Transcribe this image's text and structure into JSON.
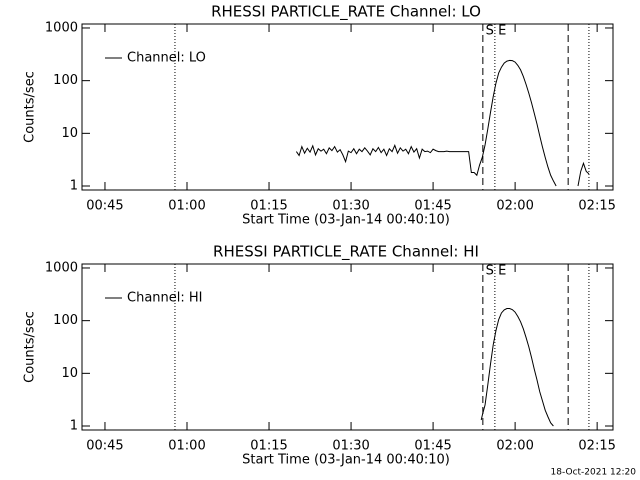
{
  "chart_data": [
    {
      "type": "line",
      "title": "RHESSI PARTICLE_RATE Channel: LO",
      "xlabel": "Start Time (03-Jan-14 00:40:10)",
      "ylabel": "Counts/sec",
      "log_y": true,
      "legend": "top-left",
      "xlim": [
        40.8,
        137.9
      ],
      "ylim": [
        0.84,
        1190
      ],
      "xticks": [
        {
          "value": 45,
          "label": "00:45"
        },
        {
          "value": 60,
          "label": "01:00"
        },
        {
          "value": 75,
          "label": "01:15"
        },
        {
          "value": 90,
          "label": "01:30"
        },
        {
          "value": 105,
          "label": "01:45"
        },
        {
          "value": 120,
          "label": "02:00"
        },
        {
          "value": 135,
          "label": "02:15"
        }
      ],
      "yticks": [
        1,
        10,
        100,
        1000
      ],
      "vlines": [
        {
          "x": 57.8,
          "style": "dotted"
        },
        {
          "x": 114.1,
          "style": "dashed"
        },
        {
          "x": 116.3,
          "style": "dotted"
        },
        {
          "x": 129.7,
          "style": "dashed"
        },
        {
          "x": 133.5,
          "style": "dotted"
        }
      ],
      "annotations": [
        {
          "text": "S",
          "x": 114.6
        },
        {
          "text": "E",
          "x": 116.9
        }
      ],
      "series": [
        {
          "name": "Channel: LO",
          "color": "#000000",
          "x": [
            80,
            80.5,
            81,
            81.5,
            82,
            82.5,
            83,
            83.5,
            84,
            84.5,
            85,
            85.5,
            86,
            86.5,
            87,
            87.5,
            88,
            88.5,
            89,
            89.5,
            90,
            90.5,
            91,
            91.5,
            92,
            92.5,
            93,
            93.5,
            94,
            94.5,
            95,
            95.5,
            96,
            96.5,
            97,
            97.5,
            98,
            98.5,
            99,
            99.5,
            100,
            100.5,
            101,
            101.5,
            102,
            102.5,
            103,
            103.5,
            104,
            104.5,
            105,
            105.5,
            106,
            106.5,
            107,
            107.5,
            108,
            108.5,
            109,
            109.5,
            110,
            110.5,
            111,
            111.5,
            112,
            112.5,
            113,
            113.5,
            114,
            114.5,
            115,
            115.5,
            116,
            116.5,
            117,
            117.5,
            118,
            118.5,
            119,
            119.5,
            120,
            120.5,
            121,
            121.5,
            122,
            122.5,
            123,
            123.5,
            124,
            124.5,
            125,
            125.5,
            126,
            126.5,
            127,
            127.5,
            129,
            131.5,
            132,
            132.5,
            133,
            133.5
          ],
          "values": [
            4.5,
            3.8,
            5.6,
            4.2,
            5.2,
            4.4,
            5.8,
            3.9,
            5.1,
            4.6,
            5.0,
            4.1,
            5.3,
            4.7,
            5.6,
            4.4,
            4.9,
            3.9,
            2.9,
            4.6,
            4.3,
            5.1,
            4.1,
            5.0,
            4.5,
            5.3,
            4.6,
            3.9,
            5.1,
            4.5,
            5.4,
            4.3,
            5.0,
            3.8,
            5.1,
            4.5,
            5.9,
            4.2,
            5.3,
            4.6,
            5.0,
            4.1,
            5.6,
            4.4,
            5.1,
            3.4,
            5.0,
            4.5,
            4.6,
            4.3,
            5.0,
            4.7,
            4.5,
            4.5,
            4.5,
            4.6,
            4.5,
            4.5,
            4.5,
            4.5,
            4.5,
            4.5,
            4.5,
            4.5,
            1.8,
            1.8,
            1.6,
            2.5,
            3.5,
            6,
            12,
            25,
            50,
            90,
            140,
            180,
            215,
            235,
            242,
            240,
            225,
            195,
            160,
            120,
            85,
            58,
            38,
            24,
            15,
            9,
            5.5,
            3.5,
            2.3,
            1.6,
            1.25,
            1.0,
            null,
            1.0,
            1.9,
            2.7,
            1.9,
            1.7
          ]
        }
      ]
    },
    {
      "type": "line",
      "title": "RHESSI PARTICLE_RATE Channel: HI",
      "xlabel": "Start Time (03-Jan-14 00:40:10)",
      "ylabel": "Counts/sec",
      "log_y": true,
      "legend": "top-left",
      "xlim": [
        40.8,
        137.9
      ],
      "ylim": [
        0.84,
        1190
      ],
      "xticks": [
        {
          "value": 45,
          "label": "00:45"
        },
        {
          "value": 60,
          "label": "01:00"
        },
        {
          "value": 75,
          "label": "01:15"
        },
        {
          "value": 90,
          "label": "01:30"
        },
        {
          "value": 105,
          "label": "01:45"
        },
        {
          "value": 120,
          "label": "02:00"
        },
        {
          "value": 135,
          "label": "02:15"
        }
      ],
      "yticks": [
        1,
        10,
        100,
        1000
      ],
      "vlines": [
        {
          "x": 57.8,
          "style": "dotted"
        },
        {
          "x": 114.1,
          "style": "dashed"
        },
        {
          "x": 116.3,
          "style": "dotted"
        },
        {
          "x": 129.7,
          "style": "dashed"
        },
        {
          "x": 133.5,
          "style": "dotted"
        }
      ],
      "annotations": [
        {
          "text": "S",
          "x": 114.6
        },
        {
          "text": "E",
          "x": 116.9
        }
      ],
      "series": [
        {
          "name": "Channel: HI",
          "color": "#000000",
          "x": [
            113.8,
            114,
            114.5,
            115,
            115.5,
            116,
            116.5,
            117,
            117.5,
            118,
            118.5,
            119,
            119.5,
            120,
            120.5,
            121,
            121.5,
            122,
            122.5,
            123,
            123.5,
            124,
            124.5,
            125,
            125.5,
            126,
            126.5,
            127
          ],
          "values": [
            1.3,
            1.6,
            2.5,
            6,
            15,
            35,
            65,
            105,
            140,
            160,
            170,
            170,
            162,
            145,
            120,
            95,
            70,
            48,
            32,
            20,
            12,
            7.5,
            4.5,
            3,
            2,
            1.5,
            1.15,
            1.0
          ]
        }
      ]
    }
  ],
  "footer": "18-Oct-2021 12:20"
}
